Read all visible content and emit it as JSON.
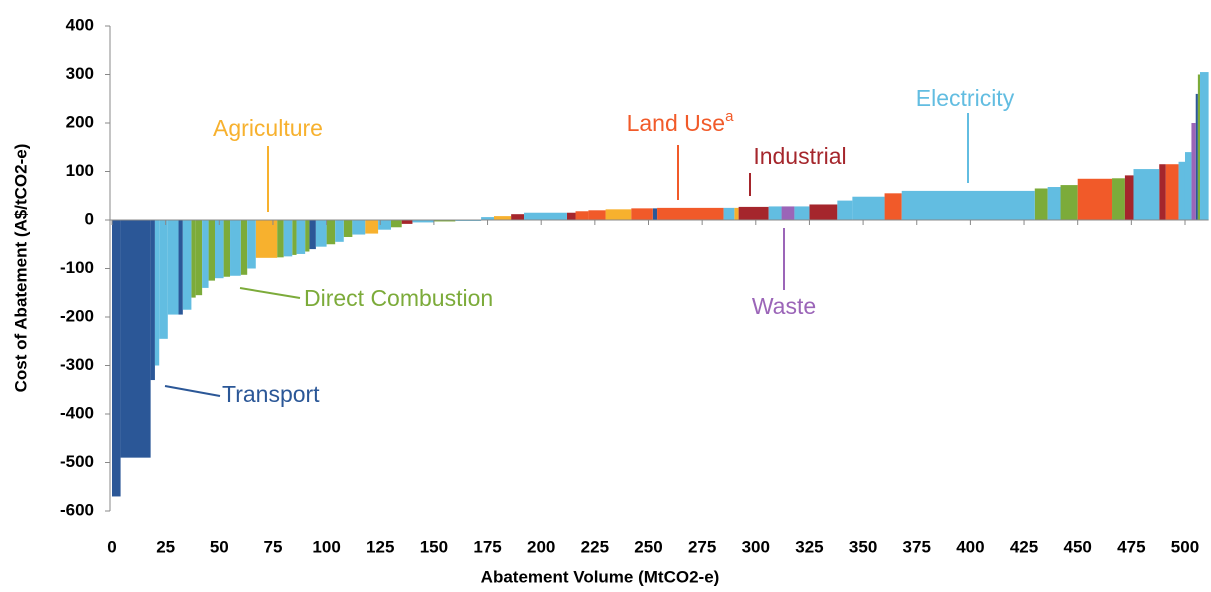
{
  "chart_data": {
    "type": "macc",
    "x_label": "Abatement Volume (MtCO2-e)",
    "y_label": "Cost of Abatement (A$/tCO2-e)",
    "xlim": [
      0,
      511
    ],
    "ylim": [
      -600,
      400
    ],
    "xticks": [
      0,
      25,
      50,
      75,
      100,
      125,
      150,
      175,
      200,
      225,
      250,
      275,
      300,
      325,
      350,
      375,
      400,
      425,
      450,
      475,
      500
    ],
    "yticks": [
      -600,
      -500,
      -400,
      -300,
      -200,
      -100,
      0,
      100,
      200,
      300,
      400
    ],
    "series": [
      {
        "name": "Transport",
        "color": "#2b5797",
        "bars": [
          [
            0,
            4,
            -570
          ],
          [
            4,
            18,
            -490
          ],
          [
            18,
            20,
            -330
          ],
          [
            31,
            33,
            -195
          ],
          [
            92,
            95,
            -60
          ],
          [
            252,
            254,
            24
          ],
          [
            505,
            506,
            260
          ]
        ]
      },
      {
        "name": "Agriculture",
        "color": "#f7b12e",
        "bars": [
          [
            67,
            77,
            -78
          ],
          [
            118,
            124,
            -28
          ],
          [
            178,
            186,
            8
          ],
          [
            230,
            242,
            22
          ],
          [
            290,
            292,
            25
          ]
        ]
      },
      {
        "name": "Direct Combustion",
        "color": "#7cab3a",
        "bars": [
          [
            37,
            39,
            -160
          ],
          [
            39,
            42,
            -155
          ],
          [
            45,
            48,
            -125
          ],
          [
            52,
            55,
            -117
          ],
          [
            60,
            63,
            -113
          ],
          [
            77,
            80,
            -77
          ],
          [
            84,
            86,
            -72
          ],
          [
            90,
            92,
            -65
          ],
          [
            100,
            104,
            -50
          ],
          [
            108,
            112,
            -35
          ],
          [
            130,
            135,
            -15
          ],
          [
            150,
            160,
            -3
          ],
          [
            430,
            436,
            65
          ],
          [
            442,
            450,
            72
          ],
          [
            466,
            472,
            86
          ],
          [
            506,
            507,
            300
          ]
        ]
      },
      {
        "name": "Land Use",
        "note_marker": "a",
        "color": "#f15a29",
        "bars": [
          [
            216,
            222,
            18
          ],
          [
            222,
            230,
            20
          ],
          [
            242,
            252,
            24
          ],
          [
            254,
            285,
            25
          ],
          [
            360,
            368,
            55
          ],
          [
            450,
            466,
            85
          ],
          [
            491,
            497,
            115
          ]
        ]
      },
      {
        "name": "Industrial",
        "color": "#a5262c",
        "bars": [
          [
            135,
            140,
            -8
          ],
          [
            186,
            192,
            12
          ],
          [
            212,
            216,
            15
          ],
          [
            292,
            306,
            27
          ],
          [
            325,
            338,
            32
          ],
          [
            472,
            476,
            92
          ],
          [
            488,
            491,
            115
          ]
        ]
      },
      {
        "name": "Waste",
        "color": "#9b65b8",
        "bars": [
          [
            312,
            318,
            28
          ],
          [
            503,
            505,
            200
          ]
        ]
      },
      {
        "name": "Electricity",
        "color": "#62bde1",
        "bars": [
          [
            20,
            22,
            -300
          ],
          [
            22,
            26,
            -245
          ],
          [
            26,
            31,
            -195
          ],
          [
            33,
            37,
            -185
          ],
          [
            42,
            45,
            -140
          ],
          [
            48,
            52,
            -120
          ],
          [
            55,
            60,
            -115
          ],
          [
            63,
            67,
            -100
          ],
          [
            80,
            84,
            -75
          ],
          [
            86,
            90,
            -70
          ],
          [
            95,
            100,
            -55
          ],
          [
            104,
            108,
            -45
          ],
          [
            112,
            118,
            -30
          ],
          [
            124,
            130,
            -20
          ],
          [
            140,
            150,
            -5
          ],
          [
            160,
            172,
            -2
          ],
          [
            172,
            178,
            6
          ],
          [
            192,
            212,
            15
          ],
          [
            285,
            290,
            25
          ],
          [
            306,
            312,
            28
          ],
          [
            318,
            325,
            28
          ],
          [
            338,
            345,
            40
          ],
          [
            345,
            360,
            48
          ],
          [
            368,
            430,
            60
          ],
          [
            436,
            442,
            68
          ],
          [
            476,
            488,
            105
          ],
          [
            497,
            500,
            120
          ],
          [
            500,
            503,
            140
          ],
          [
            507,
            511,
            305
          ]
        ]
      }
    ]
  }
}
